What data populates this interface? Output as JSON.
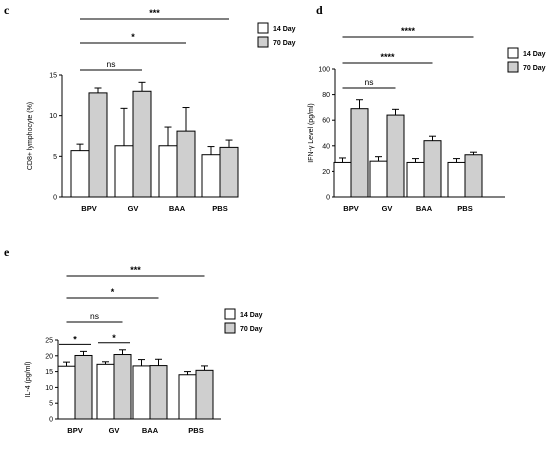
{
  "chart_data": [
    {
      "panel": "c",
      "type": "bar",
      "ylabel": "CD8+ lymphocyte (%)",
      "ylim": [
        0,
        15
      ],
      "yticks": [
        0,
        5,
        10,
        15
      ],
      "categories": [
        "BPV",
        "GV",
        "BAA",
        "PBS"
      ],
      "series": [
        {
          "name": "14 Day",
          "color": "#ffffff",
          "values": [
            5.7,
            6.3,
            6.3,
            5.2
          ],
          "errors": [
            0.8,
            4.6,
            2.3,
            1.0
          ]
        },
        {
          "name": "70 Day",
          "color": "#cfcfcf",
          "values": [
            12.8,
            13.0,
            8.1,
            6.1
          ],
          "errors": [
            0.6,
            1.1,
            2.9,
            0.9
          ]
        }
      ],
      "comparisons": [
        {
          "from": 0,
          "to": 1,
          "label": "ns"
        },
        {
          "from": 0,
          "to": 2,
          "label": "*"
        },
        {
          "from": 0,
          "to": 3,
          "label": "***"
        }
      ]
    },
    {
      "panel": "d",
      "type": "bar",
      "ylabel": "IFN-γ Level (pg/ml)",
      "ylim": [
        0,
        100
      ],
      "yticks": [
        0,
        20,
        40,
        60,
        80,
        100
      ],
      "categories": [
        "BPV",
        "GV",
        "BAA",
        "PBS"
      ],
      "series": [
        {
          "name": "14 Day",
          "color": "#ffffff",
          "values": [
            27,
            28,
            27,
            27
          ],
          "errors": [
            3.5,
            3.5,
            3,
            3
          ]
        },
        {
          "name": "70 Day",
          "color": "#cfcfcf",
          "values": [
            69,
            64,
            44,
            33
          ],
          "errors": [
            7,
            4.5,
            3.5,
            2
          ]
        }
      ],
      "comparisons": [
        {
          "from": 0,
          "to": 1,
          "label": "ns"
        },
        {
          "from": 0,
          "to": 2,
          "label": "****"
        },
        {
          "from": 0,
          "to": 3,
          "label": "****"
        }
      ]
    },
    {
      "panel": "e",
      "type": "bar",
      "ylabel": "IL-4 (pg/ml)",
      "ylim": [
        0,
        25
      ],
      "yticks": [
        0,
        5,
        10,
        15,
        20,
        25
      ],
      "categories": [
        "BPV",
        "GV",
        "BAA",
        "PBS"
      ],
      "series": [
        {
          "name": "14 Day",
          "color": "#ffffff",
          "values": [
            16.7,
            17.3,
            16.8,
            14.0
          ],
          "errors": [
            1.3,
            0.8,
            2.0,
            1.0
          ]
        },
        {
          "name": "70 Day",
          "color": "#cfcfcf",
          "values": [
            20.1,
            20.4,
            16.9,
            15.4
          ],
          "errors": [
            1.3,
            1.5,
            2.0,
            1.4
          ]
        }
      ],
      "comparisons": [
        {
          "from": 0,
          "to": 1,
          "label": "ns"
        },
        {
          "from": 0,
          "to": 2,
          "label": "*"
        },
        {
          "from": 0,
          "to": 3,
          "label": "***"
        }
      ],
      "within_group": [
        {
          "category": 0,
          "label": "*"
        },
        {
          "category": 1,
          "label": "*"
        }
      ]
    }
  ]
}
